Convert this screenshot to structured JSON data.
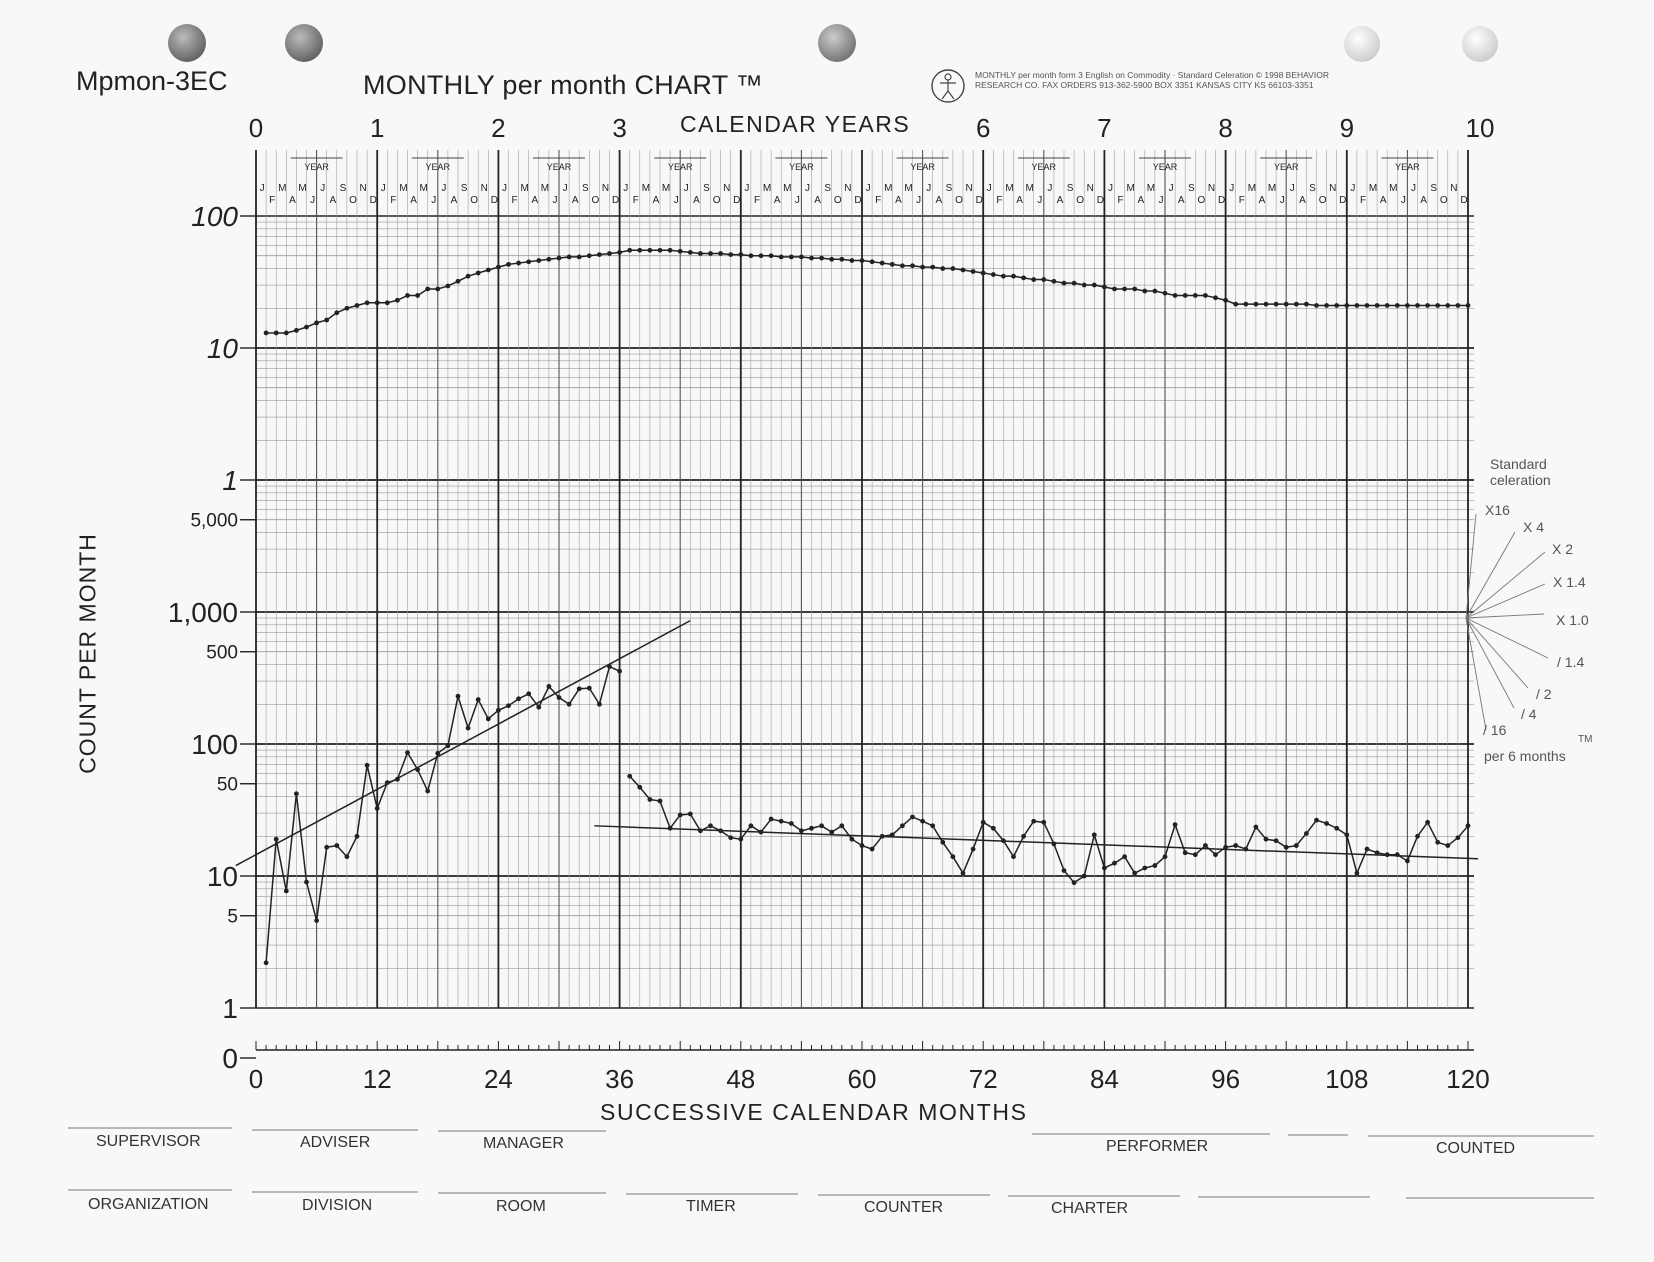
{
  "header": {
    "chart_id": "Mpmon-3EC",
    "title": "MONTHLY per month CHART ™",
    "credit": "MONTHLY per month form 3 English on Commodity · Standard Celeration © 1998 BEHAVIOR RESEARCH CO. FAX ORDERS 913-362-5900 BOX 3351 KANSAS CITY KS 66103-3351"
  },
  "chart_data": {
    "type": "line",
    "title": "MONTHLY per month CHART ™",
    "xlabel": "SUCCESSIVE CALENDAR MONTHS",
    "ylabel": "COUNT PER MONTH",
    "top_axis_label": "CALENDAR YEARS",
    "top_axis_ticks": [
      "0",
      "1",
      "2",
      "3",
      "6",
      "7",
      "8",
      "9",
      "10"
    ],
    "x_ticks": [
      "0",
      "12",
      "24",
      "36",
      "48",
      "60",
      "72",
      "84",
      "96",
      "108",
      "120"
    ],
    "y_ticks_upper_panel": [
      "100",
      "10",
      "1"
    ],
    "y_ticks_lower_panel": [
      "5,000",
      "1,000",
      "500",
      "100",
      "50",
      "10",
      "5",
      "1",
      "0"
    ],
    "year_band_label": "YEAR",
    "month_letters_top": [
      "J",
      "M",
      "M",
      "J",
      "S",
      "N"
    ],
    "month_letters_bottom": [
      "F",
      "A",
      "J",
      "A",
      "O",
      "D"
    ],
    "xlim": [
      0,
      120
    ],
    "grid": true,
    "series": [
      {
        "panel": "upper",
        "values": [
          [
            1,
            13
          ],
          [
            2,
            13
          ],
          [
            3,
            13
          ],
          [
            4,
            13.6
          ],
          [
            5,
            14.4
          ],
          [
            6,
            15.5
          ],
          [
            7,
            16.3
          ],
          [
            8,
            18.5
          ],
          [
            9,
            20
          ],
          [
            10,
            21
          ],
          [
            11,
            22
          ],
          [
            12,
            22
          ],
          [
            13,
            22
          ],
          [
            14,
            23
          ],
          [
            15,
            25
          ],
          [
            16,
            25
          ],
          [
            17,
            28
          ],
          [
            18,
            28
          ],
          [
            19,
            29.5
          ],
          [
            20,
            32
          ],
          [
            21,
            35
          ],
          [
            22,
            37
          ],
          [
            23,
            39
          ],
          [
            24,
            41
          ],
          [
            25,
            43
          ],
          [
            26,
            44
          ],
          [
            27,
            45
          ],
          [
            28,
            46
          ],
          [
            29,
            47
          ],
          [
            30,
            48
          ],
          [
            31,
            49
          ],
          [
            32,
            49
          ],
          [
            33,
            50
          ],
          [
            34,
            51
          ],
          [
            35,
            52
          ],
          [
            36,
            53
          ],
          [
            37,
            55
          ],
          [
            38,
            55
          ],
          [
            39,
            55
          ],
          [
            40,
            55
          ],
          [
            41,
            55
          ],
          [
            42,
            54
          ],
          [
            43,
            53
          ],
          [
            44,
            52
          ],
          [
            45,
            52
          ],
          [
            46,
            52
          ],
          [
            47,
            51
          ],
          [
            48,
            51
          ],
          [
            49,
            50
          ],
          [
            50,
            50
          ],
          [
            51,
            50
          ],
          [
            52,
            49
          ],
          [
            53,
            49
          ],
          [
            54,
            49
          ],
          [
            55,
            48
          ],
          [
            56,
            48
          ],
          [
            57,
            47
          ],
          [
            58,
            47
          ],
          [
            59,
            46
          ],
          [
            60,
            46
          ],
          [
            61,
            45
          ],
          [
            62,
            44
          ],
          [
            63,
            43
          ],
          [
            64,
            42
          ],
          [
            65,
            42
          ],
          [
            66,
            41
          ],
          [
            67,
            41
          ],
          [
            68,
            40
          ],
          [
            69,
            40
          ],
          [
            70,
            39
          ],
          [
            71,
            38
          ],
          [
            72,
            37
          ],
          [
            73,
            36
          ],
          [
            74,
            35
          ],
          [
            75,
            35
          ],
          [
            76,
            34
          ],
          [
            77,
            33
          ],
          [
            78,
            33
          ],
          [
            79,
            32
          ],
          [
            80,
            31
          ],
          [
            81,
            31
          ],
          [
            82,
            30
          ],
          [
            83,
            30
          ],
          [
            84,
            29
          ],
          [
            85,
            28
          ],
          [
            86,
            28
          ],
          [
            87,
            28
          ],
          [
            88,
            27
          ],
          [
            89,
            27
          ],
          [
            90,
            26
          ],
          [
            91,
            25
          ],
          [
            92,
            25
          ],
          [
            93,
            25
          ],
          [
            94,
            25
          ],
          [
            95,
            24
          ],
          [
            96,
            23
          ],
          [
            97,
            21.5
          ],
          [
            98,
            21.5
          ],
          [
            99,
            21.5
          ],
          [
            100,
            21.5
          ],
          [
            101,
            21.5
          ],
          [
            102,
            21.5
          ],
          [
            103,
            21.5
          ],
          [
            104,
            21.5
          ],
          [
            105,
            21
          ],
          [
            106,
            21
          ],
          [
            107,
            21
          ],
          [
            108,
            21
          ],
          [
            109,
            21
          ],
          [
            110,
            21
          ],
          [
            111,
            21
          ],
          [
            112,
            21
          ],
          [
            113,
            21
          ],
          [
            114,
            21
          ],
          [
            115,
            21
          ],
          [
            116,
            21
          ],
          [
            117,
            21
          ],
          [
            118,
            21
          ],
          [
            119,
            21
          ],
          [
            120,
            21
          ]
        ]
      },
      {
        "panel": "lower",
        "values": [
          [
            1,
            2.2
          ],
          [
            2,
            19
          ],
          [
            3,
            7.7
          ],
          [
            4,
            42
          ],
          [
            5,
            9
          ],
          [
            6,
            4.6
          ],
          [
            7,
            16.5
          ],
          [
            8,
            17
          ],
          [
            9,
            14
          ],
          [
            10,
            20
          ],
          [
            11,
            69
          ],
          [
            12,
            32.5
          ],
          [
            13,
            51
          ],
          [
            14,
            54
          ],
          [
            15,
            86
          ],
          [
            16,
            64
          ],
          [
            17,
            44
          ],
          [
            18,
            85
          ],
          [
            19,
            97
          ],
          [
            20,
            230
          ],
          [
            21,
            132
          ],
          [
            22,
            217
          ],
          [
            23,
            155
          ],
          [
            24,
            180
          ],
          [
            25,
            195
          ],
          [
            26,
            220
          ],
          [
            27,
            240
          ],
          [
            28,
            190
          ],
          [
            29,
            273
          ],
          [
            30,
            225
          ],
          [
            31,
            200
          ],
          [
            32,
            262
          ],
          [
            33,
            265
          ],
          [
            34,
            200
          ],
          [
            35,
            386
          ],
          [
            36,
            356
          ]
        ]
      },
      {
        "panel": "lower",
        "values": [
          [
            37,
            57
          ],
          [
            38,
            47
          ],
          [
            39,
            38
          ],
          [
            40,
            37
          ],
          [
            41,
            23
          ],
          [
            42,
            29
          ],
          [
            43,
            29.5
          ],
          [
            44,
            22
          ],
          [
            45,
            24
          ],
          [
            46,
            22
          ],
          [
            47,
            19.5
          ],
          [
            48,
            19
          ],
          [
            49,
            24
          ],
          [
            50,
            21.5
          ],
          [
            51,
            27
          ],
          [
            52,
            26
          ],
          [
            53,
            25
          ],
          [
            54,
            22
          ],
          [
            55,
            23
          ],
          [
            56,
            24
          ],
          [
            57,
            21.5
          ],
          [
            58,
            24
          ],
          [
            59,
            19
          ],
          [
            60,
            17
          ],
          [
            61,
            16
          ],
          [
            62,
            20
          ],
          [
            63,
            20.5
          ],
          [
            64,
            24
          ],
          [
            65,
            28
          ],
          [
            66,
            26
          ],
          [
            67,
            24
          ],
          [
            68,
            18
          ],
          [
            69,
            14
          ],
          [
            70,
            10.5
          ],
          [
            71,
            16
          ],
          [
            72,
            25.5
          ],
          [
            73,
            23
          ],
          [
            74,
            18.5
          ],
          [
            75,
            14
          ],
          [
            76,
            20
          ],
          [
            77,
            26
          ],
          [
            78,
            25.5
          ],
          [
            79,
            17.5
          ],
          [
            80,
            11
          ],
          [
            81,
            8.9
          ],
          [
            82,
            10
          ],
          [
            83,
            20.5
          ],
          [
            84,
            11.5
          ],
          [
            85,
            12.5
          ],
          [
            86,
            14
          ],
          [
            87,
            10.5
          ],
          [
            88,
            11.5
          ],
          [
            89,
            12
          ],
          [
            90,
            14
          ],
          [
            91,
            24.5
          ],
          [
            92,
            15
          ],
          [
            93,
            14.5
          ],
          [
            94,
            17
          ],
          [
            95,
            14.5
          ],
          [
            96,
            16.5
          ],
          [
            97,
            17
          ],
          [
            98,
            16
          ],
          [
            99,
            23.5
          ],
          [
            100,
            19
          ],
          [
            101,
            18.5
          ],
          [
            102,
            16.5
          ],
          [
            103,
            17
          ],
          [
            104,
            21
          ],
          [
            105,
            26.5
          ],
          [
            106,
            25
          ],
          [
            107,
            23
          ],
          [
            108,
            20.5
          ],
          [
            109,
            10.5
          ],
          [
            110,
            16
          ],
          [
            111,
            15
          ],
          [
            112,
            14.5
          ],
          [
            113,
            14.5
          ],
          [
            114,
            13
          ],
          [
            115,
            20
          ],
          [
            116,
            25.5
          ],
          [
            117,
            18
          ],
          [
            118,
            17
          ],
          [
            119,
            19.5
          ],
          [
            120,
            24
          ]
        ]
      }
    ],
    "trend_lines": [
      {
        "from": [
          -2,
          12
        ],
        "to": [
          43,
          860
        ]
      },
      {
        "from": [
          33.5,
          24
        ],
        "to": [
          121,
          13.5
        ]
      }
    ]
  },
  "celeration": {
    "title": "Standard celeration",
    "labels": [
      "X16",
      "X 4",
      "X 2",
      "X 1.4",
      "X 1.0",
      "/ 1.4",
      "/ 2",
      "/ 4",
      "/ 16"
    ],
    "tm": "TM",
    "per": "per 6 months"
  },
  "signatures": {
    "row1": [
      "SUPERVISOR",
      "ADVISER",
      "MANAGER",
      "PERFORMER",
      "COUNTED"
    ],
    "row2": [
      "ORGANIZATION",
      "DIVISION",
      "ROOM",
      "TIMER",
      "COUNTER",
      "CHARTER"
    ]
  },
  "colors": {
    "ink": "#222222",
    "grid_light": "#9a9a9a",
    "paper": "#f7f8f7"
  }
}
